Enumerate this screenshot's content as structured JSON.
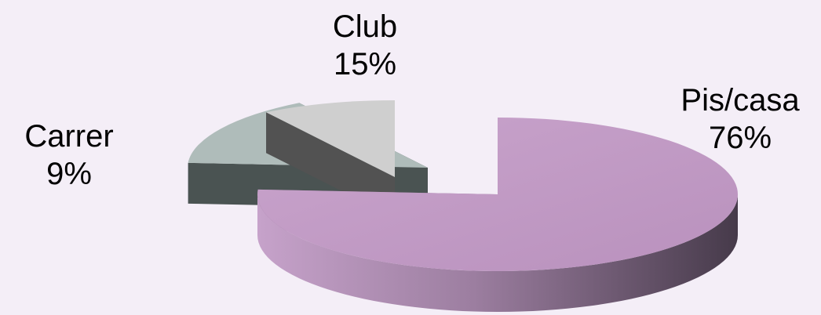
{
  "chart_data": {
    "type": "pie",
    "three_d": true,
    "exploded": true,
    "title": "",
    "legend": "none",
    "slices": [
      {
        "label": "Pis/casa",
        "percent_label": "76%",
        "value": 76,
        "color": "#c09ac4",
        "side_color": "#8f6f93"
      },
      {
        "label": "Club",
        "percent_label": "15%",
        "value": 15,
        "color": "#afbcba",
        "side_color": "#4a5352"
      },
      {
        "label": "Carrer",
        "percent_label": "9%",
        "value": 9,
        "color": "#cfcfcf",
        "side_color": "#525252"
      }
    ]
  }
}
